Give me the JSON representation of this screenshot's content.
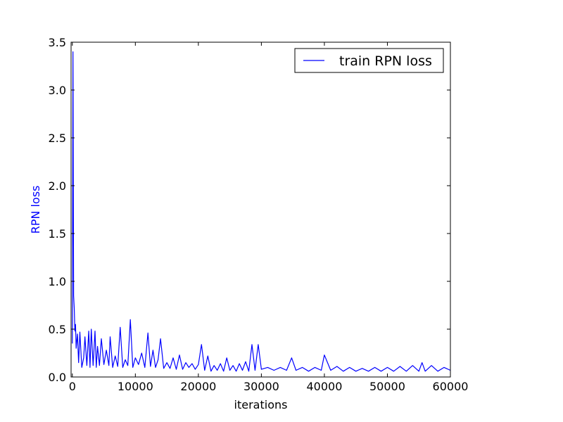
{
  "chart_data": {
    "type": "line",
    "xlabel": "iterations",
    "ylabel": "RPN loss",
    "xlim": [
      -200,
      60000
    ],
    "ylim": [
      0.0,
      3.5
    ],
    "xticks": [
      {
        "value": 0,
        "label": "0"
      },
      {
        "value": 10000,
        "label": "10000"
      },
      {
        "value": 20000,
        "label": "20000"
      },
      {
        "value": 30000,
        "label": "30000"
      },
      {
        "value": 40000,
        "label": "40000"
      },
      {
        "value": 50000,
        "label": "50000"
      },
      {
        "value": 60000,
        "label": "60000"
      }
    ],
    "yticks": [
      {
        "value": 0.0,
        "label": "0.0"
      },
      {
        "value": 0.5,
        "label": "0.5"
      },
      {
        "value": 1.0,
        "label": "1.0"
      },
      {
        "value": 1.5,
        "label": "1.5"
      },
      {
        "value": 2.0,
        "label": "2.0"
      },
      {
        "value": 2.5,
        "label": "2.5"
      },
      {
        "value": 3.0,
        "label": "3.0"
      },
      {
        "value": 3.5,
        "label": "3.5"
      }
    ],
    "grid": false,
    "legend_position": "top-right",
    "colors": {
      "series": "#0000ff",
      "ylabel": "#0000ff",
      "axes": "#000000",
      "background": "#ffffff"
    },
    "series": [
      {
        "name": "train RPN loss",
        "x": [
          0,
          100,
          200,
          300,
          400,
          500,
          600,
          800,
          1000,
          1200,
          1500,
          1800,
          2000,
          2300,
          2600,
          2800,
          3000,
          3300,
          3600,
          3800,
          4000,
          4300,
          4600,
          5000,
          5400,
          5800,
          6000,
          6400,
          6800,
          7200,
          7600,
          8000,
          8400,
          8800,
          9200,
          9600,
          10000,
          10500,
          11000,
          11500,
          12000,
          12400,
          12800,
          13200,
          13600,
          14000,
          14500,
          15000,
          15500,
          16000,
          16500,
          17000,
          17500,
          18000,
          18500,
          19000,
          19500,
          20000,
          20500,
          21000,
          21500,
          22000,
          22500,
          23000,
          23500,
          24000,
          24500,
          25000,
          25500,
          26000,
          26500,
          27000,
          27500,
          28000,
          28500,
          29000,
          29500,
          30000,
          31000,
          32000,
          33000,
          34000,
          34800,
          35500,
          36500,
          37500,
          38500,
          39500,
          40000,
          41000,
          42000,
          43000,
          44000,
          45000,
          46000,
          47000,
          48000,
          49000,
          50000,
          51000,
          52000,
          53000,
          54000,
          55000,
          55500,
          56000,
          57000,
          58000,
          59000,
          60000
        ],
        "y": [
          0.35,
          3.4,
          0.85,
          0.72,
          0.48,
          0.55,
          0.3,
          0.45,
          0.15,
          0.47,
          0.1,
          0.2,
          0.42,
          0.12,
          0.48,
          0.1,
          0.5,
          0.12,
          0.48,
          0.1,
          0.32,
          0.12,
          0.4,
          0.13,
          0.28,
          0.12,
          0.42,
          0.1,
          0.22,
          0.11,
          0.52,
          0.1,
          0.18,
          0.12,
          0.6,
          0.1,
          0.2,
          0.13,
          0.25,
          0.1,
          0.46,
          0.11,
          0.28,
          0.1,
          0.18,
          0.4,
          0.09,
          0.15,
          0.09,
          0.2,
          0.08,
          0.23,
          0.08,
          0.15,
          0.1,
          0.14,
          0.08,
          0.13,
          0.34,
          0.07,
          0.22,
          0.06,
          0.12,
          0.07,
          0.14,
          0.06,
          0.2,
          0.07,
          0.12,
          0.06,
          0.14,
          0.07,
          0.16,
          0.06,
          0.34,
          0.07,
          0.34,
          0.08,
          0.1,
          0.07,
          0.1,
          0.07,
          0.2,
          0.07,
          0.1,
          0.06,
          0.1,
          0.07,
          0.23,
          0.07,
          0.11,
          0.06,
          0.1,
          0.06,
          0.09,
          0.06,
          0.1,
          0.06,
          0.1,
          0.06,
          0.11,
          0.06,
          0.12,
          0.06,
          0.15,
          0.06,
          0.12,
          0.06,
          0.1,
          0.07
        ]
      }
    ]
  }
}
